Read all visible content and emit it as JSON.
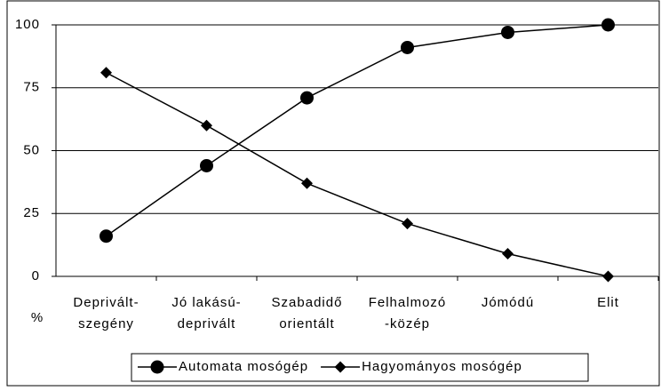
{
  "chart_data": {
    "type": "line",
    "categories": [
      [
        "Deprivált-",
        "szegény"
      ],
      [
        "Jó lakású-",
        "deprivált"
      ],
      [
        "Szabadidő",
        "orientált"
      ],
      [
        "Felhalmozó",
        "-közép"
      ],
      [
        "Jómódú"
      ],
      [
        "Elit"
      ]
    ],
    "series": [
      {
        "name": "Automata mosógép",
        "color": "#000000",
        "marker": "circle",
        "values": [
          16,
          44,
          71,
          91,
          97,
          100
        ]
      },
      {
        "name": "Hagyományos mosógép",
        "color": "#000000",
        "marker": "diamond",
        "values": [
          81,
          60,
          37,
          21,
          9,
          0
        ]
      }
    ],
    "ylabel": "%",
    "ylim": [
      0,
      100
    ],
    "yticks": [
      0,
      25,
      50,
      75,
      100
    ],
    "grid": true,
    "legend": "bottom"
  }
}
